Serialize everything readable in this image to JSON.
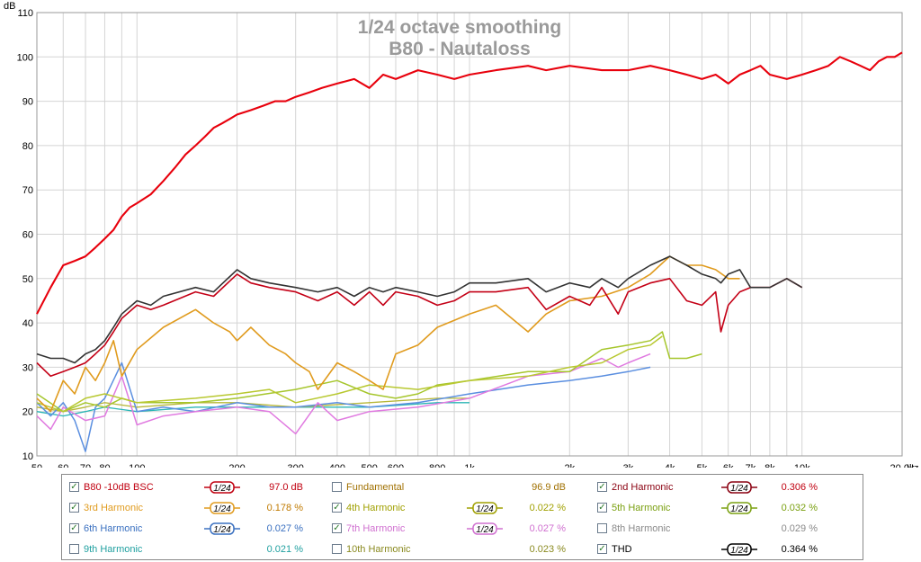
{
  "chart_data": {
    "type": "line",
    "title": "1/24 octave smoothing",
    "subtitle": "B80 - Nautaloss",
    "ylabel": "dB",
    "xunit": "Hz",
    "xscale": "log",
    "xlim": [
      50,
      20000
    ],
    "ylim": [
      10,
      110
    ],
    "grid": true,
    "yticks": [
      10,
      20,
      30,
      40,
      50,
      60,
      70,
      80,
      90,
      100,
      110
    ],
    "xticks": [
      {
        "v": 50,
        "t": "50"
      },
      {
        "v": 60,
        "t": "60"
      },
      {
        "v": 70,
        "t": "70"
      },
      {
        "v": 80,
        "t": "80"
      },
      {
        "v": 100,
        "t": "100"
      },
      {
        "v": 200,
        "t": "200"
      },
      {
        "v": 300,
        "t": "300"
      },
      {
        "v": 400,
        "t": "400"
      },
      {
        "v": 500,
        "t": "500"
      },
      {
        "v": 600,
        "t": "600"
      },
      {
        "v": 800,
        "t": "800"
      },
      {
        "v": 1000,
        "t": "1k"
      },
      {
        "v": 2000,
        "t": "2k"
      },
      {
        "v": 3000,
        "t": "3k"
      },
      {
        "v": 4000,
        "t": "4k"
      },
      {
        "v": 5000,
        "t": "5k"
      },
      {
        "v": 6000,
        "t": "6k"
      },
      {
        "v": 7000,
        "t": "7k"
      },
      {
        "v": 8000,
        "t": "8k"
      },
      {
        "v": 10000,
        "t": "10k"
      },
      {
        "v": 20000,
        "t": "20.0k"
      }
    ],
    "series": [
      {
        "name": "9th Harmonic",
        "color": "#2bb5b5",
        "width": 1.3,
        "x": [
          50,
          60,
          70,
          80,
          100,
          150,
          200,
          300,
          500,
          800,
          1000
        ],
        "y": [
          20,
          19,
          20,
          21,
          20,
          21,
          21,
          21,
          21,
          22,
          22
        ]
      },
      {
        "name": "10th Harmonic",
        "color": "#b7b738",
        "width": 1.3,
        "x": [
          50,
          60,
          70,
          80,
          100,
          150,
          200,
          300,
          500,
          800,
          1000
        ],
        "y": [
          21,
          20,
          21,
          22,
          21,
          22,
          22,
          21,
          22,
          23,
          23
        ]
      },
      {
        "name": "6th Harmonic",
        "color": "#5b8fe0",
        "width": 1.5,
        "x": [
          50,
          55,
          60,
          65,
          70,
          75,
          80,
          90,
          100,
          120,
          150,
          200,
          250,
          300,
          400,
          500,
          700,
          1000,
          1500,
          2000,
          2500,
          3000,
          3500
        ],
        "y": [
          22,
          19,
          22,
          18,
          11,
          21,
          23,
          31,
          20,
          21,
          20,
          22,
          21,
          21,
          22,
          21,
          22,
          24,
          26,
          27,
          28,
          29,
          30
        ]
      },
      {
        "name": "7th Harmonic",
        "color": "#e07ae0",
        "width": 1.5,
        "x": [
          50,
          55,
          60,
          70,
          80,
          90,
          100,
          120,
          150,
          200,
          250,
          300,
          350,
          400,
          500,
          700,
          1000,
          1500,
          2000,
          2500,
          2800,
          3000,
          3500
        ],
        "y": [
          19,
          16,
          21,
          18,
          19,
          28,
          17,
          19,
          20,
          21,
          20,
          15,
          22,
          18,
          20,
          21,
          23,
          28,
          29,
          32,
          30,
          31,
          33
        ]
      },
      {
        "name": "5th Harmonic",
        "color": "#a6c62c",
        "width": 1.5,
        "x": [
          50,
          60,
          70,
          80,
          90,
          100,
          150,
          200,
          300,
          400,
          500,
          600,
          700,
          800,
          1000,
          1500,
          2000,
          2500,
          3000,
          3500,
          3800,
          4000,
          4500,
          5000
        ],
        "y": [
          24,
          20,
          22,
          21,
          23,
          22,
          22,
          23,
          25,
          27,
          24,
          23,
          24,
          26,
          27,
          29,
          29,
          34,
          35,
          36,
          38,
          32,
          32,
          33
        ]
      },
      {
        "name": "4th Harmonic",
        "color": "#b8c830",
        "width": 1.5,
        "x": [
          50,
          60,
          70,
          80,
          100,
          150,
          200,
          250,
          300,
          400,
          500,
          700,
          1000,
          1500,
          2000,
          2500,
          3000,
          3500,
          3800
        ],
        "y": [
          22,
          20,
          23,
          24,
          22,
          23,
          24,
          25,
          22,
          24,
          26,
          25,
          27,
          28,
          30,
          31,
          34,
          35,
          37
        ]
      },
      {
        "name": "3rd Harmonic",
        "color": "#e09b1e",
        "width": 1.6,
        "x": [
          50,
          55,
          60,
          65,
          70,
          75,
          80,
          85,
          90,
          100,
          120,
          150,
          170,
          190,
          200,
          220,
          250,
          280,
          300,
          330,
          350,
          400,
          450,
          500,
          550,
          600,
          700,
          800,
          1000,
          1200,
          1500,
          1700,
          2000,
          2500,
          3000,
          3500,
          4000,
          4500,
          5000,
          5500,
          6000,
          6500
        ],
        "y": [
          23,
          20,
          27,
          24,
          30,
          27,
          31,
          36,
          28,
          34,
          39,
          43,
          40,
          38,
          36,
          39,
          35,
          33,
          31,
          29,
          25,
          31,
          29,
          27,
          25,
          33,
          35,
          39,
          42,
          44,
          38,
          42,
          45,
          46,
          48,
          51,
          55,
          53,
          53,
          52,
          50,
          50
        ]
      },
      {
        "name": "2nd Harmonic",
        "color": "#c40016",
        "width": 1.6,
        "x": [
          50,
          55,
          60,
          65,
          70,
          75,
          80,
          85,
          90,
          100,
          110,
          120,
          150,
          170,
          200,
          220,
          250,
          300,
          350,
          400,
          450,
          500,
          550,
          600,
          700,
          800,
          900,
          1000,
          1200,
          1500,
          1700,
          2000,
          2300,
          2500,
          2800,
          3000,
          3500,
          4000,
          4500,
          5000,
          5500,
          5700,
          6000,
          6500,
          7000,
          8000,
          9000,
          10000
        ],
        "y": [
          31,
          28,
          29,
          30,
          31,
          33,
          35,
          38,
          41,
          44,
          43,
          44,
          47,
          46,
          51,
          49,
          48,
          47,
          45,
          47,
          44,
          47,
          44,
          47,
          46,
          44,
          45,
          47,
          47,
          48,
          43,
          46,
          44,
          48,
          42,
          47,
          49,
          50,
          45,
          44,
          47,
          38,
          44,
          47,
          48,
          48,
          50,
          48
        ]
      },
      {
        "name": "THD",
        "color": "#333333",
        "width": 1.6,
        "x": [
          50,
          55,
          60,
          65,
          70,
          75,
          80,
          85,
          90,
          100,
          110,
          120,
          150,
          170,
          200,
          220,
          250,
          300,
          350,
          400,
          450,
          500,
          550,
          600,
          700,
          800,
          900,
          1000,
          1200,
          1500,
          1700,
          2000,
          2300,
          2500,
          2800,
          3000,
          3500,
          4000,
          4500,
          5000,
          5500,
          5700,
          6000,
          6500,
          7000,
          8000,
          9000,
          10000
        ],
        "y": [
          33,
          32,
          32,
          31,
          33,
          34,
          36,
          39,
          42,
          45,
          44,
          46,
          48,
          47,
          52,
          50,
          49,
          48,
          47,
          48,
          46,
          48,
          47,
          48,
          47,
          46,
          47,
          49,
          49,
          50,
          47,
          49,
          48,
          50,
          48,
          50,
          53,
          55,
          53,
          51,
          50,
          49,
          51,
          52,
          48,
          48,
          50,
          48
        ]
      },
      {
        "name": "B80 -10dB BSC",
        "color": "#e8000c",
        "width": 2.1,
        "x": [
          50,
          55,
          60,
          65,
          70,
          75,
          80,
          85,
          90,
          95,
          100,
          110,
          120,
          130,
          140,
          150,
          160,
          170,
          180,
          190,
          200,
          220,
          240,
          260,
          280,
          300,
          330,
          360,
          400,
          450,
          500,
          550,
          600,
          700,
          800,
          900,
          1000,
          1200,
          1500,
          1700,
          2000,
          2500,
          3000,
          3500,
          4000,
          4500,
          5000,
          5500,
          6000,
          6500,
          7000,
          7500,
          8000,
          9000,
          10000,
          11000,
          12000,
          13000,
          14000,
          15000,
          16000,
          17000,
          18000,
          19000,
          20000
        ],
        "y": [
          42,
          48,
          53,
          54,
          55,
          57,
          59,
          61,
          64,
          66,
          67,
          69,
          72,
          75,
          78,
          80,
          82,
          84,
          85,
          86,
          87,
          88,
          89,
          90,
          90,
          91,
          92,
          93,
          94,
          95,
          93,
          96,
          95,
          97,
          96,
          95,
          96,
          97,
          98,
          97,
          98,
          97,
          97,
          98,
          97,
          96,
          95,
          96,
          94,
          96,
          97,
          98,
          96,
          95,
          96,
          97,
          98,
          100,
          99,
          98,
          97,
          99,
          100,
          100,
          101
        ]
      }
    ]
  },
  "legend": {
    "rows": [
      [
        {
          "label": "B80 -10dB BSC",
          "checked": true,
          "color": "#c00010",
          "smooth": "1/24",
          "value": "97.0 dB",
          "valueColor": "#c00010"
        },
        {
          "label": "Fundamental",
          "checked": false,
          "color": "#a07000",
          "smooth": "",
          "value": "96.9 dB",
          "valueColor": "#a07000"
        },
        {
          "label": "2nd Harmonic",
          "checked": true,
          "color": "#8a0010",
          "smooth": "1/24",
          "value": "0.306 %",
          "valueColor": "#c00010"
        }
      ],
      [
        {
          "label": "3rd Harmonic",
          "checked": true,
          "color": "#e09b1e",
          "smooth": "1/24",
          "value": "0.178 %",
          "valueColor": "#c07a00"
        },
        {
          "label": "4th Harmonic",
          "checked": true,
          "color": "#a0a000",
          "smooth": "1/24",
          "value": "0.022 %",
          "valueColor": "#a0a000"
        },
        {
          "label": "5th Harmonic",
          "checked": true,
          "color": "#7aa010",
          "smooth": "1/24",
          "value": "0.032 %",
          "valueColor": "#7aa010"
        }
      ],
      [
        {
          "label": "6th Harmonic",
          "checked": true,
          "color": "#3a70c0",
          "smooth": "1/24",
          "value": "0.027 %",
          "valueColor": "#3a70c0"
        },
        {
          "label": "7th Harmonic",
          "checked": true,
          "color": "#d070d0",
          "smooth": "1/24",
          "value": "0.027 %",
          "valueColor": "#d070d0"
        },
        {
          "label": "8th Harmonic",
          "checked": false,
          "color": "#8a8a8a",
          "smooth": "",
          "value": "0.029 %",
          "valueColor": "#8a8a8a"
        }
      ],
      [
        {
          "label": "9th Harmonic",
          "checked": false,
          "color": "#20a0a0",
          "smooth": "",
          "value": "0.021 %",
          "valueColor": "#20a0a0"
        },
        {
          "label": "10th Harmonic",
          "checked": false,
          "color": "#8a8a20",
          "smooth": "",
          "value": "0.023 %",
          "valueColor": "#8a8a20"
        },
        {
          "label": "THD",
          "checked": true,
          "color": "#000000",
          "smooth": "1/24",
          "value": "0.364 %",
          "valueColor": "#000000"
        }
      ]
    ]
  }
}
